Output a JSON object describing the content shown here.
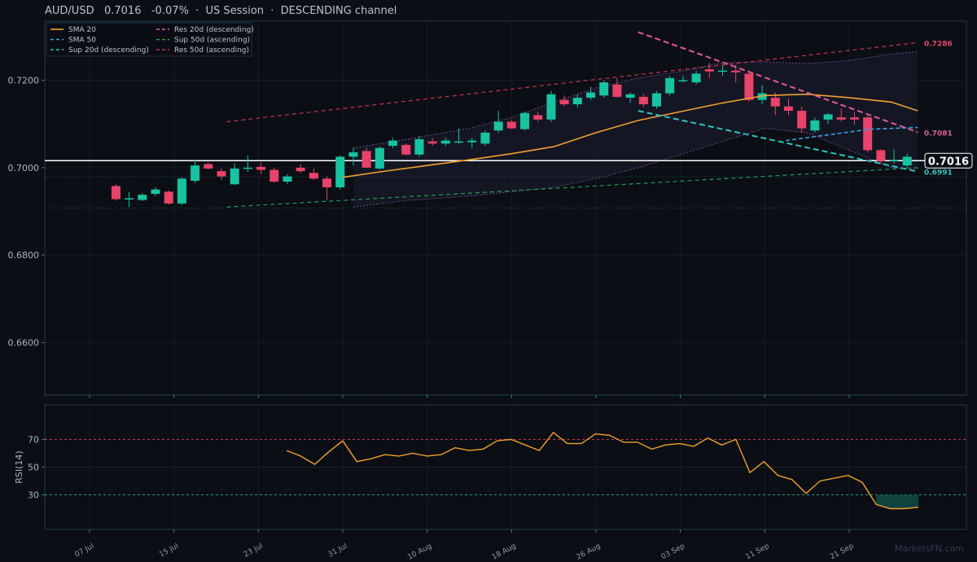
{
  "header": {
    "title": "AUD/USD   0.7016   -0.07%  ·  US Session  ·  DESCENDING channel"
  },
  "watermark": "MarketsFN.com",
  "chart_data": [
    {
      "type": "candlestick",
      "ylim": [
        0.648,
        0.7335
      ],
      "yticks": [
        "0.6600",
        "0.6800",
        "0.7000",
        "0.7200"
      ],
      "ytick_values": [
        0.66,
        0.68,
        0.7,
        0.72
      ],
      "xticks": [
        "07 Jul",
        "15 Jul",
        "23 Jul",
        "31 Jul",
        "10 Aug",
        "18 Aug",
        "26 Aug",
        "03 Sep",
        "11 Sep",
        "21 Sep"
      ],
      "xtick_index": [
        0,
        8,
        16,
        24,
        32,
        40,
        48,
        56,
        64,
        72
      ],
      "candles": [
        [
          0.6958,
          0.6962,
          0.6925,
          0.6928
        ],
        [
          0.6928,
          0.6945,
          0.691,
          0.693
        ],
        [
          0.6926,
          0.6942,
          0.6924,
          0.6938
        ],
        [
          0.694,
          0.6955,
          0.6935,
          0.695
        ],
        [
          0.6945,
          0.6948,
          0.6915,
          0.6918
        ],
        [
          0.6918,
          0.6978,
          0.6915,
          0.6975
        ],
        [
          0.697,
          0.7018,
          0.6965,
          0.7005
        ],
        [
          0.7008,
          0.7012,
          0.6995,
          0.6998
        ],
        [
          0.6992,
          0.6998,
          0.6972,
          0.698
        ],
        [
          0.6962,
          0.701,
          0.696,
          0.6998
        ],
        [
          0.6998,
          0.7028,
          0.699,
          0.7
        ],
        [
          0.7002,
          0.7012,
          0.6985,
          0.6995
        ],
        [
          0.6995,
          0.7,
          0.6965,
          0.6968
        ],
        [
          0.6968,
          0.6985,
          0.6962,
          0.698
        ],
        [
          0.7,
          0.7008,
          0.6988,
          0.6992
        ],
        [
          0.6988,
          0.6998,
          0.6972,
          0.6975
        ],
        [
          0.6975,
          0.698,
          0.6925,
          0.6955
        ],
        [
          0.6955,
          0.7028,
          0.695,
          0.7025
        ],
        [
          0.7025,
          0.7045,
          0.7005,
          0.7035
        ],
        [
          0.7038,
          0.7045,
          0.7,
          0.7
        ],
        [
          0.6998,
          0.7048,
          0.6995,
          0.7045
        ],
        [
          0.705,
          0.7068,
          0.7045,
          0.7062
        ],
        [
          0.7052,
          0.7055,
          0.7028,
          0.703
        ],
        [
          0.703,
          0.7072,
          0.7025,
          0.7065
        ],
        [
          0.706,
          0.7068,
          0.705,
          0.7055
        ],
        [
          0.7055,
          0.7068,
          0.705,
          0.7062
        ],
        [
          0.706,
          0.709,
          0.7055,
          0.706
        ],
        [
          0.7058,
          0.7068,
          0.7045,
          0.7062
        ],
        [
          0.7055,
          0.7085,
          0.705,
          0.708
        ],
        [
          0.7085,
          0.713,
          0.708,
          0.7105
        ],
        [
          0.7105,
          0.711,
          0.7088,
          0.709
        ],
        [
          0.7088,
          0.7128,
          0.7085,
          0.7125
        ],
        [
          0.712,
          0.7128,
          0.7105,
          0.711
        ],
        [
          0.711,
          0.7175,
          0.7105,
          0.7168
        ],
        [
          0.7155,
          0.7165,
          0.714,
          0.7145
        ],
        [
          0.7145,
          0.7168,
          0.7138,
          0.716
        ],
        [
          0.716,
          0.7185,
          0.7155,
          0.7172
        ],
        [
          0.7165,
          0.72,
          0.716,
          0.7195
        ],
        [
          0.719,
          0.7205,
          0.716,
          0.7162
        ],
        [
          0.716,
          0.7172,
          0.7148,
          0.7168
        ],
        [
          0.7162,
          0.7168,
          0.7138,
          0.7145
        ],
        [
          0.714,
          0.7175,
          0.7135,
          0.717
        ],
        [
          0.717,
          0.721,
          0.7165,
          0.7205
        ],
        [
          0.7198,
          0.721,
          0.7195,
          0.72
        ],
        [
          0.7195,
          0.7222,
          0.719,
          0.7215
        ],
        [
          0.7225,
          0.724,
          0.7205,
          0.722
        ],
        [
          0.722,
          0.7235,
          0.721,
          0.7222
        ],
        [
          0.7222,
          0.7235,
          0.7195,
          0.7218
        ],
        [
          0.7215,
          0.7222,
          0.715,
          0.7155
        ],
        [
          0.7155,
          0.7188,
          0.7145,
          0.717
        ],
        [
          0.716,
          0.7172,
          0.712,
          0.714
        ],
        [
          0.714,
          0.7158,
          0.712,
          0.713
        ],
        [
          0.713,
          0.714,
          0.708,
          0.709
        ],
        [
          0.7085,
          0.7115,
          0.708,
          0.7108
        ],
        [
          0.711,
          0.7125,
          0.71,
          0.7122
        ],
        [
          0.7115,
          0.7135,
          0.7105,
          0.711
        ],
        [
          0.7115,
          0.7128,
          0.7098,
          0.711
        ],
        [
          0.7115,
          0.7118,
          0.7035,
          0.704
        ],
        [
          0.704,
          0.7042,
          0.7008,
          0.7015
        ],
        [
          0.7015,
          0.7042,
          0.701,
          0.7018
        ],
        [
          0.7005,
          0.7032,
          0.7,
          0.7025
        ]
      ],
      "candle_x_start": 2.5,
      "candle_x_step": 1.25,
      "sma20": [
        [
          24,
          0.6978
        ],
        [
          28,
          0.6992
        ],
        [
          32,
          0.7005
        ],
        [
          36,
          0.7018
        ],
        [
          40,
          0.7032
        ],
        [
          44,
          0.7048
        ],
        [
          48,
          0.708
        ],
        [
          52,
          0.7108
        ],
        [
          56,
          0.7128
        ],
        [
          60,
          0.7148
        ],
        [
          64,
          0.7165
        ],
        [
          68,
          0.7168
        ],
        [
          72,
          0.716
        ],
        [
          76,
          0.715
        ],
        [
          78.5,
          0.713
        ]
      ],
      "sma50": [
        [
          66,
          0.7062
        ],
        [
          70,
          0.7075
        ],
        [
          74,
          0.7088
        ],
        [
          78.5,
          0.7092
        ]
      ],
      "bb_upper": [
        [
          25,
          0.7045
        ],
        [
          30,
          0.7065
        ],
        [
          36,
          0.709
        ],
        [
          40,
          0.7115
        ],
        [
          44,
          0.715
        ],
        [
          48,
          0.7182
        ],
        [
          52,
          0.7205
        ],
        [
          56,
          0.722
        ],
        [
          60,
          0.724
        ],
        [
          64,
          0.7242
        ],
        [
          68,
          0.7238
        ],
        [
          72,
          0.7245
        ],
        [
          76,
          0.726
        ],
        [
          78.5,
          0.7265
        ]
      ],
      "bb_lower": [
        [
          25,
          0.691
        ],
        [
          30,
          0.6925
        ],
        [
          36,
          0.6935
        ],
        [
          40,
          0.6945
        ],
        [
          44,
          0.6955
        ],
        [
          48,
          0.6975
        ],
        [
          52,
          0.7
        ],
        [
          56,
          0.703
        ],
        [
          60,
          0.706
        ],
        [
          64,
          0.709
        ],
        [
          68,
          0.708
        ],
        [
          72,
          0.704
        ],
        [
          76,
          0.7
        ],
        [
          78.5,
          0.6998
        ]
      ],
      "lines": [
        {
          "name": "Res 20d (descending)",
          "color": "#e05c9a",
          "dash": "7,4",
          "width": 2,
          "points": [
            [
              52,
              0.731
            ],
            [
              78.5,
              0.7081
            ]
          ]
        },
        {
          "name": "Sup 20d (descending)",
          "color": "#2ec4c0",
          "dash": "7,4",
          "width": 2,
          "points": [
            [
              52,
              0.713
            ],
            [
              78.5,
              0.6991
            ]
          ]
        },
        {
          "name": "Res 50d (ascending)",
          "color": "#c8334e",
          "dash": "5,4",
          "width": 1.2,
          "points": [
            [
              13,
              0.7105
            ],
            [
              78.5,
              0.7286
            ]
          ]
        },
        {
          "name": "Sup 50d (ascending)",
          "color": "#1f9c5c",
          "dash": "5,4",
          "width": 1.2,
          "points": [
            [
              13,
              0.691
            ],
            [
              78.5,
              0.7
            ]
          ]
        }
      ],
      "hlines": [
        {
          "value": 0.7016,
          "color": "#ffffff",
          "width": 1.6,
          "dash": ""
        },
        {
          "value": 0.6979,
          "color": "#1a6e5a",
          "width": 0.8,
          "dash": "1,2"
        },
        {
          "value": 0.6908,
          "color": "#1a6e5a",
          "width": 0.8,
          "dash": "1,2"
        },
        {
          "value": 0.648,
          "color": "#1a6e5a",
          "width": 0.8,
          "dash": "1,2"
        }
      ],
      "level_labels": [
        {
          "text": "0.7286",
          "value": 0.7286,
          "color": "#e8436a"
        },
        {
          "text": "0.7081",
          "value": 0.7081,
          "color": "#e05c9a"
        },
        {
          "text": "0.6991",
          "value": 0.6991,
          "color": "#2ec4c0"
        }
      ],
      "price_tag": {
        "text": "0.7016",
        "value": 0.7016
      },
      "legend": {
        "placement": "top-left",
        "items": [
          {
            "label": "SMA 20",
            "color": "#f0a030",
            "dash": ""
          },
          {
            "label": "SMA 50",
            "color": "#3aa0e0",
            "dash": "4,3"
          },
          {
            "label": "Sup 20d (descending)",
            "color": "#2ec4c0",
            "dash": "4,3"
          },
          {
            "label": "Res 20d (descending)",
            "color": "#e05c9a",
            "dash": "4,3"
          },
          {
            "label": "Sup 50d (ascending)",
            "color": "#1f9c5c",
            "dash": "4,3"
          },
          {
            "label": "Res 50d (ascending)",
            "color": "#c8334e",
            "dash": "4,3"
          }
        ]
      },
      "colors": {
        "up": "#17c3a0",
        "down": "#e8436a",
        "sma20": "#f0a030",
        "sma50": "#3aa0e0",
        "bands": "#7a5aa0"
      }
    },
    {
      "type": "line",
      "ylabel": "RSI(14)",
      "ylim": [
        5,
        95
      ],
      "yticks": [
        "30",
        "50",
        "70"
      ],
      "ytick_values": [
        30,
        50,
        70
      ],
      "levels": [
        70,
        30
      ],
      "series": [
        {
          "x": [
            16,
            17,
            18,
            19,
            20,
            21,
            22,
            23,
            24,
            25,
            26,
            27,
            28,
            29,
            30,
            31,
            32,
            33,
            34,
            35,
            36,
            37,
            38,
            39,
            40,
            41,
            42,
            43,
            44,
            45,
            46,
            47,
            48,
            49,
            50,
            51,
            52,
            53,
            54,
            55,
            56,
            57,
            58,
            59,
            60,
            61,
            62,
            63,
            64,
            65,
            66,
            67,
            68,
            69,
            70,
            71,
            72,
            73,
            74,
            75,
            76
          ],
          "values": [
            62,
            58,
            52,
            61,
            69,
            54,
            56,
            59,
            58,
            60,
            58,
            59,
            64,
            62,
            63,
            69,
            70,
            66,
            62,
            75,
            67,
            67,
            74,
            73,
            68,
            68,
            63,
            66,
            67,
            65,
            71,
            66,
            70,
            46,
            54,
            44,
            41,
            31,
            40,
            42,
            44,
            39,
            23,
            20,
            20,
            21,
            21,
            21,
            21,
            21,
            21,
            21,
            21,
            21,
            21,
            21,
            21,
            21,
            21,
            21,
            21
          ]
        }
      ],
      "rsi": [
        [
          25,
          62
        ],
        [
          26,
          58
        ],
        [
          27,
          52
        ],
        [
          28,
          61
        ],
        [
          29,
          69
        ],
        [
          30,
          54
        ],
        [
          31,
          56
        ],
        [
          32,
          59
        ],
        [
          33,
          58
        ],
        [
          34,
          60
        ],
        [
          35,
          58
        ],
        [
          36,
          59
        ],
        [
          37,
          64
        ],
        [
          38,
          62
        ],
        [
          39,
          63
        ],
        [
          40,
          69
        ],
        [
          41,
          70
        ],
        [
          42,
          66
        ],
        [
          43,
          62
        ],
        [
          44,
          75
        ],
        [
          45,
          67
        ],
        [
          46,
          67
        ],
        [
          47,
          74
        ],
        [
          48,
          73
        ],
        [
          49,
          68
        ],
        [
          50,
          68
        ],
        [
          51,
          63
        ],
        [
          52,
          66
        ],
        [
          53,
          67
        ],
        [
          54,
          65
        ],
        [
          55,
          71
        ],
        [
          56,
          66
        ],
        [
          57,
          70
        ],
        [
          58,
          46
        ],
        [
          59,
          54
        ],
        [
          60,
          44
        ],
        [
          61,
          41
        ],
        [
          62,
          31
        ],
        [
          63,
          40
        ],
        [
          64,
          42
        ],
        [
          65,
          44
        ],
        [
          66,
          39
        ],
        [
          67,
          23
        ],
        [
          68,
          20
        ],
        [
          69,
          20
        ],
        [
          70,
          21
        ]
      ],
      "colors": {
        "line": "#f0a030",
        "upper": "#c8334e",
        "lower": "#1f9c7c",
        "fill": "#0f4a42"
      }
    }
  ]
}
